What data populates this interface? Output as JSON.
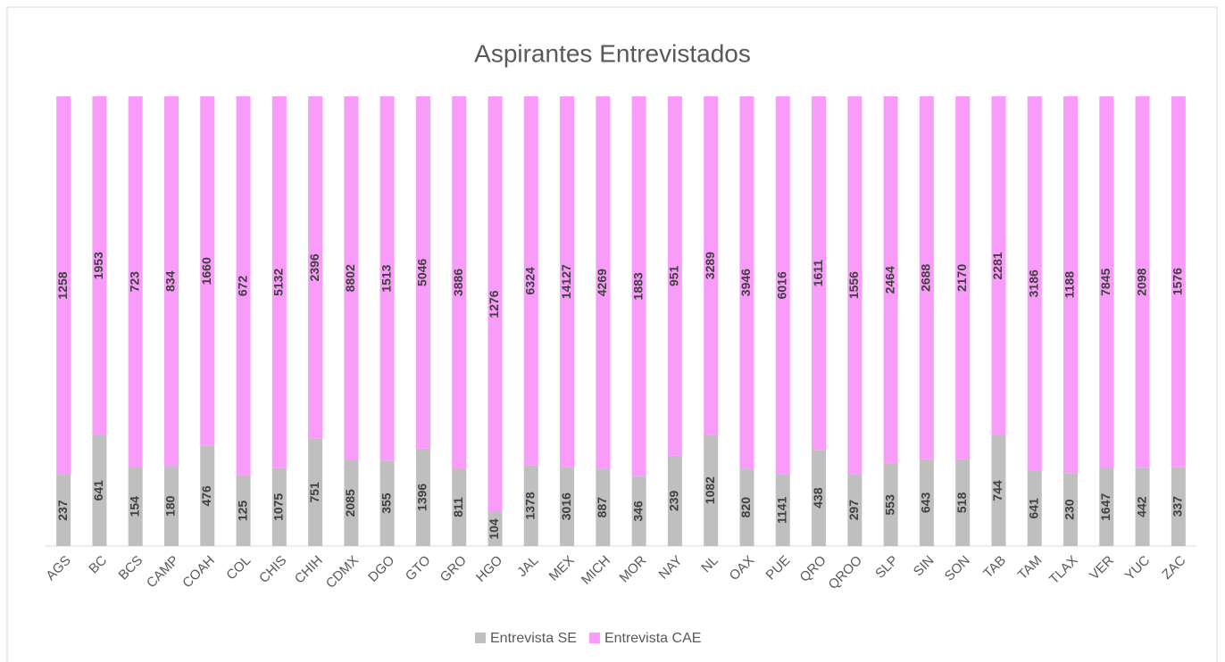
{
  "chart_data": {
    "type": "bar",
    "stacked": "percent",
    "title": "Aspirantes Entrevistados",
    "categories": [
      "AGS",
      "BC",
      "BCS",
      "CAMP",
      "COAH",
      "COL",
      "CHIS",
      "CHIH",
      "CDMX",
      "DGO",
      "GTO",
      "GRO",
      "HGO",
      "JAL",
      "MEX",
      "MICH",
      "MOR",
      "NAY",
      "NL",
      "OAX",
      "PUE",
      "QRO",
      "QROO",
      "SLP",
      "SIN",
      "SON",
      "TAB",
      "TAM",
      "TLAX",
      "VER",
      "YUC",
      "ZAC"
    ],
    "series": [
      {
        "name": "Entrevista SE",
        "color": "#bfbfbf",
        "values": [
          237,
          641,
          154,
          180,
          476,
          125,
          1075,
          751,
          2085,
          355,
          1396,
          811,
          104,
          1378,
          3016,
          887,
          346,
          239,
          1082,
          820,
          1141,
          438,
          297,
          553,
          643,
          518,
          744,
          641,
          230,
          1647,
          442,
          337
        ]
      },
      {
        "name": "Entrevista CAE",
        "color": "#f99cf9",
        "values": [
          1258,
          1953,
          723,
          834,
          1660,
          672,
          5132,
          2396,
          8802,
          1513,
          5046,
          3886,
          1276,
          6324,
          14127,
          4269,
          1883,
          951,
          3289,
          3946,
          6016,
          1611,
          1556,
          2464,
          2688,
          2170,
          2281,
          3186,
          1188,
          7845,
          2098,
          1576
        ]
      }
    ],
    "legend": "bottom"
  }
}
